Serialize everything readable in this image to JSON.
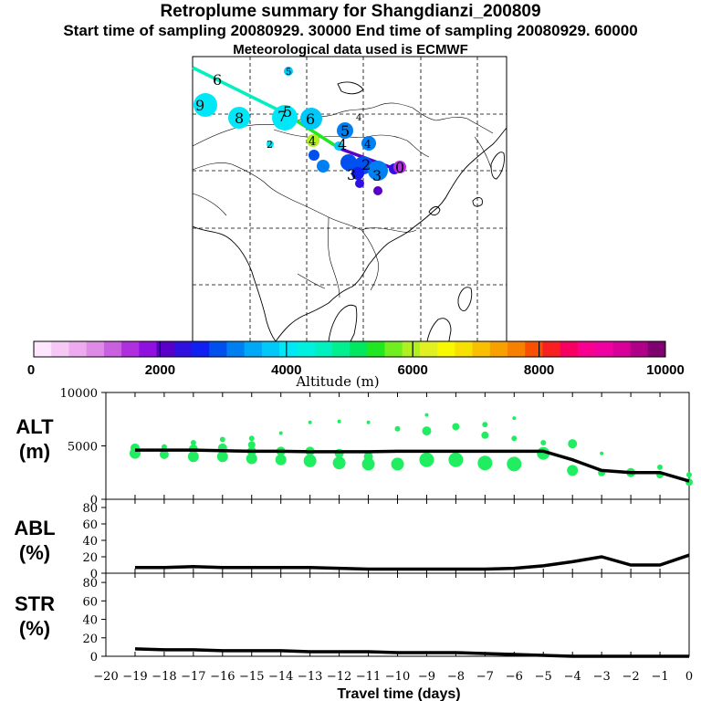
{
  "header": {
    "title": "Retroplume summary for Shangdianzi_200809",
    "sampling": "Start time of sampling 20080929. 30000     End time of sampling 20080929. 60000",
    "met": "Meteorological data used is ECMWF"
  },
  "colorbar": {
    "tick_labels": [
      "0",
      "2000",
      "4000",
      "6000",
      "8000",
      "10000"
    ],
    "label": "Altitude (m)",
    "colors": [
      "#ffe6ff",
      "#f5c8f5",
      "#eeaaee",
      "#e08ae8",
      "#c860e0",
      "#b030e0",
      "#9010e0",
      "#5800c8",
      "#3010e0",
      "#1020f0",
      "#0050f0",
      "#0080f0",
      "#00a8f8",
      "#00c8f8",
      "#00e8f8",
      "#00f0e0",
      "#00f0c0",
      "#00f090",
      "#00e860",
      "#20e820",
      "#70ee20",
      "#b0f020",
      "#e0f020",
      "#f8f800",
      "#f8e000",
      "#f8c000",
      "#f8a000",
      "#f88000",
      "#f85000",
      "#f82020",
      "#f80060",
      "#f80090",
      "#f000a0",
      "#d80098",
      "#b00088",
      "#800070"
    ]
  },
  "map_labels": [
    {
      "text": "6",
      "color": "#000000"
    },
    {
      "text": "5",
      "color": "#000000"
    },
    {
      "text": "9",
      "color": "#000000"
    },
    {
      "text": "8",
      "color": "#000000"
    },
    {
      "text": "7",
      "color": "#000000"
    },
    {
      "text": "5",
      "color": "#000000"
    },
    {
      "text": "6",
      "color": "#000000"
    },
    {
      "text": "4",
      "color": "#000000"
    },
    {
      "text": "2",
      "color": "#000000"
    },
    {
      "text": "4",
      "color": "#000000"
    },
    {
      "text": "4",
      "color": "#000000"
    },
    {
      "text": "5",
      "color": "#000000"
    },
    {
      "text": "4",
      "color": "#000000"
    },
    {
      "text": "3",
      "color": "#000000"
    },
    {
      "text": "3",
      "color": "#000000"
    },
    {
      "text": "2",
      "color": "#000000"
    },
    {
      "text": "0",
      "color": "#000000"
    }
  ],
  "chart_data": [
    {
      "type": "scatter",
      "title": "Retroplume summary for Shangdianzi_200809",
      "ylabel": "ALT (m)",
      "xlabel": "Travel time (days)",
      "xlim": [
        -20,
        0
      ],
      "ylim": [
        0,
        10000
      ],
      "yticks": [
        "0",
        "5000",
        "10000"
      ],
      "xtick_labels": [
        "−20",
        "−19",
        "−18",
        "−17",
        "−16",
        "−15",
        "−14",
        "−13",
        "−12",
        "−11",
        "−10",
        "−9",
        "−8",
        "−7",
        "−6",
        "−5",
        "−4",
        "−3",
        "−2",
        "−1",
        "0"
      ],
      "series": [
        {
          "name": "mean altitude",
          "x": [
            -19,
            -18,
            -17,
            -16,
            -15,
            -14,
            -13,
            -12,
            -11,
            -10,
            -9,
            -8,
            -7,
            -6,
            -5,
            -4,
            -3,
            -2,
            -1,
            0
          ],
          "y": [
            4600,
            4600,
            4600,
            4550,
            4500,
            4500,
            4450,
            4450,
            4450,
            4500,
            4500,
            4500,
            4500,
            4500,
            4500,
            3700,
            2700,
            2500,
            2500,
            1700
          ]
        },
        {
          "name": "plume clusters",
          "x": [
            -19,
            -19,
            -18,
            -18,
            -17,
            -17,
            -17,
            -16,
            -16,
            -16,
            -15,
            -15,
            -15,
            -15,
            -14,
            -14,
            -14,
            -13,
            -13,
            -13,
            -12,
            -12,
            -12,
            -11,
            -11,
            -11,
            -10,
            -10,
            -9,
            -9,
            -9,
            -8,
            -8,
            -7,
            -7,
            -7,
            -6,
            -6,
            -6,
            -5,
            -5,
            -4,
            -4,
            -3,
            -3,
            -2,
            -1,
            -1,
            0,
            0
          ],
          "y": [
            4300,
            4800,
            4200,
            4900,
            4000,
            4700,
            5300,
            4000,
            4800,
            5600,
            3800,
            4500,
            5100,
            5700,
            3700,
            4500,
            6200,
            3600,
            4500,
            7200,
            3400,
            4300,
            7300,
            3300,
            4000,
            7200,
            3300,
            6600,
            3700,
            6400,
            7900,
            3700,
            6800,
            3400,
            6000,
            7000,
            3300,
            5700,
            7600,
            4300,
            5300,
            2700,
            5200,
            2500,
            4300,
            2500,
            2300,
            3000,
            1600,
            2300
          ],
          "r": [
            6,
            5,
            5,
            3,
            6,
            5,
            3,
            6,
            5,
            3,
            6,
            5,
            4,
            3,
            6,
            5,
            2,
            7,
            5,
            2,
            7,
            5,
            2,
            7,
            5,
            2,
            7,
            3,
            8,
            5,
            2,
            8,
            4,
            8,
            4,
            3,
            8,
            3,
            2,
            7,
            3,
            6,
            5,
            4,
            2,
            5,
            4,
            3,
            4,
            3
          ]
        }
      ]
    },
    {
      "type": "line",
      "ylabel": "ABL (%)",
      "xlim": [
        -20,
        0
      ],
      "ylim": [
        0,
        90
      ],
      "yticks": [
        "0",
        "20",
        "40",
        "60",
        "80"
      ],
      "series": [
        {
          "name": "ABL fraction",
          "x": [
            -19,
            -18,
            -17,
            -16,
            -15,
            -14,
            -13,
            -12,
            -11,
            -10,
            -9,
            -8,
            -7,
            -6,
            -5,
            -4,
            -3,
            -2,
            -1,
            0
          ],
          "y": [
            7,
            7,
            8,
            7,
            7,
            7,
            7,
            6,
            5,
            5,
            5,
            5,
            5,
            6,
            9,
            14,
            20,
            10,
            10,
            22
          ]
        }
      ]
    },
    {
      "type": "line",
      "ylabel": "STR (%)",
      "xlabel": "Travel time (days)",
      "xlim": [
        -20,
        0
      ],
      "ylim": [
        0,
        90
      ],
      "yticks": [
        "0",
        "20",
        "40",
        "60",
        "80"
      ],
      "series": [
        {
          "name": "stratospheric fraction",
          "x": [
            -19,
            -18,
            -17,
            -16,
            -15,
            -14,
            -13,
            -12,
            -11,
            -10,
            -9,
            -8,
            -7,
            -6,
            -5,
            -4,
            -3,
            -2,
            -1,
            0
          ],
          "y": [
            8,
            7,
            7,
            6,
            6,
            6,
            5,
            5,
            5,
            4,
            4,
            4,
            3,
            2,
            1,
            0,
            0,
            0,
            0,
            0
          ]
        }
      ]
    }
  ],
  "panels": {
    "alt_label": [
      "ALT",
      "(m)"
    ],
    "abl_label": [
      "ABL",
      "(%)"
    ],
    "str_label": [
      "STR",
      "(%)"
    ]
  }
}
